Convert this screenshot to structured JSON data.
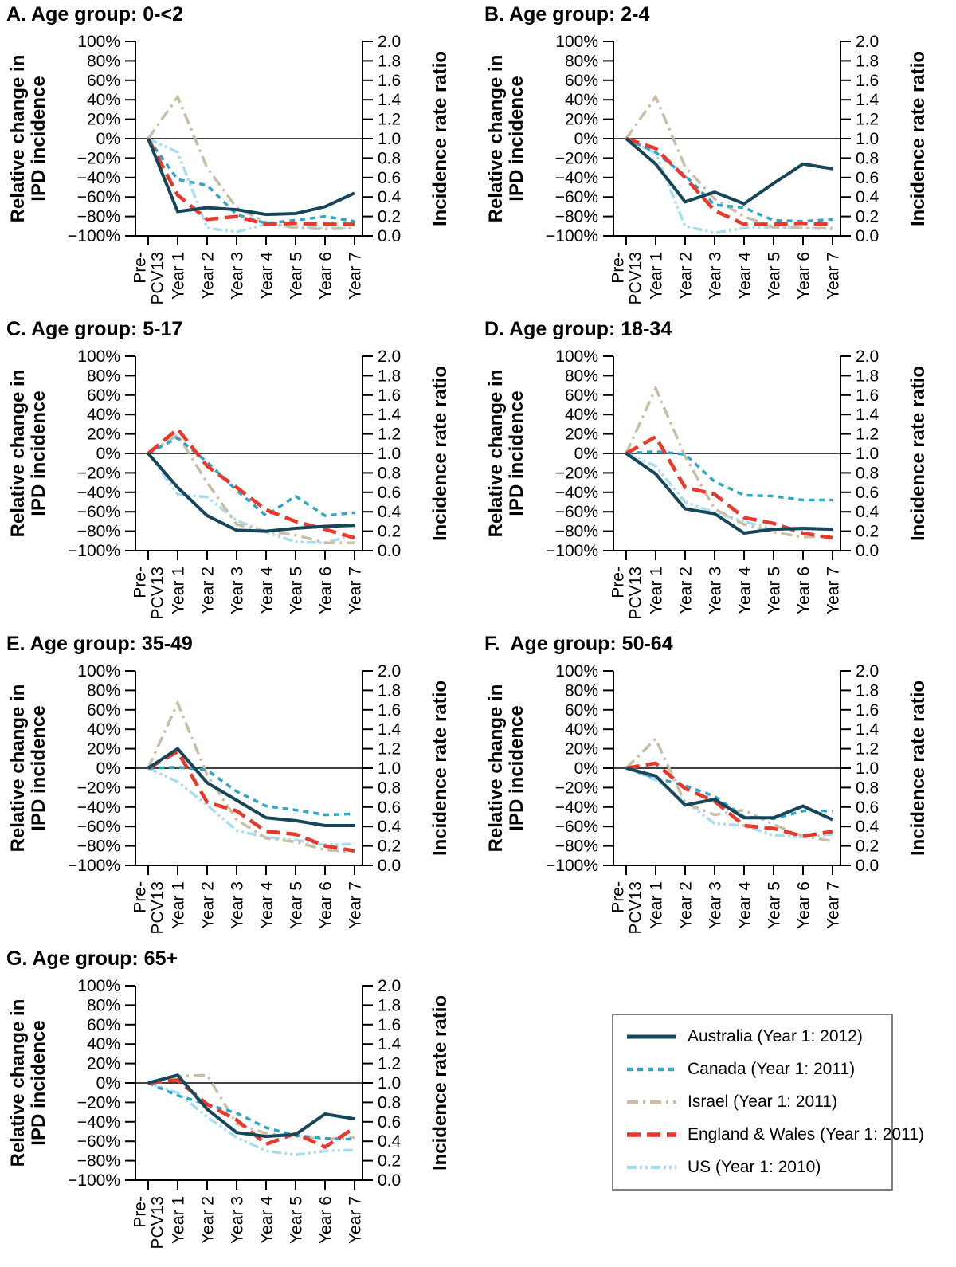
{
  "figure": {
    "background_color": "#ffffff",
    "axis": {
      "left_label_line1": "Relative change in",
      "left_label_line2": "IPD incidence",
      "right_label": "Incidence rate ratio",
      "left_tick_labels": [
        "100%",
        "80%",
        "60%",
        "40%",
        "20%",
        "0%",
        "−20%",
        "−40%",
        "−60%",
        "−80%",
        "−100%"
      ],
      "right_tick_labels": [
        "2.0",
        "1.8",
        "1.6",
        "1.4",
        "1.2",
        "1.0",
        "0.8",
        "0.6",
        "0.4",
        "0.2",
        "0.0"
      ]
    }
  },
  "series_meta": [
    {
      "id": "australia",
      "label": "Australia (Year 1: 2012)",
      "color": "#15465a",
      "dash": "none",
      "width": 4
    },
    {
      "id": "canada",
      "label": "Canada (Year 1: 2011)",
      "color": "#2fa6c5",
      "dash": "7 6",
      "width": 3.5
    },
    {
      "id": "israel",
      "label": "Israel (Year 1: 2011)",
      "color": "#c9bfa6",
      "dash": "14 6 3 6",
      "width": 3.5
    },
    {
      "id": "england-wales",
      "label": "England & Wales (Year 1: 2011)",
      "color": "#e9392c",
      "dash": "17 8",
      "width": 4.5
    },
    {
      "id": "us",
      "label": "US (Year 1: 2010)",
      "color": "#a9dcee",
      "dash": "12 4 3 4 3 4",
      "width": 3.5
    }
  ],
  "chart_data": {
    "type": "line",
    "categories": [
      "Pre-PCV13",
      "Year 1",
      "Year 2",
      "Year 3",
      "Year 4",
      "Year 5",
      "Year 6",
      "Year 7"
    ],
    "ylabel": "Relative change in IPD incidence",
    "y2label": "Incidence rate ratio",
    "ylim": [
      -100,
      100
    ],
    "y2lim": [
      0.0,
      2.0
    ],
    "y_unit": "%",
    "y_tick_step": 20,
    "zero_line": true,
    "grid": false,
    "legend_position": "bottom-right",
    "panels": [
      {
        "title": "A. Age group: 0-<2",
        "series": [
          {
            "name": "Australia (Year 1: 2012)",
            "values": [
              0,
              -75,
              -71,
              -73,
              -78,
              -77,
              -70,
              -56
            ]
          },
          {
            "name": "Canada (Year 1: 2011)",
            "values": [
              0,
              -42,
              -48,
              -78,
              -87,
              -84,
              -80,
              -85
            ]
          },
          {
            "name": "Israel (Year 1: 2011)",
            "values": [
              0,
              43,
              -30,
              -71,
              -86,
              -92,
              -93,
              -92
            ]
          },
          {
            "name": "England & Wales (Year 1: 2011)",
            "values": [
              0,
              -58,
              -83,
              -80,
              -88,
              -87,
              -88,
              -88
            ]
          },
          {
            "name": "US (Year 1: 2010)",
            "values": [
              0,
              -14,
              -92,
              -96,
              -88,
              -91,
              -92,
              -92
            ]
          }
        ]
      },
      {
        "title": "B. Age group: 2-4",
        "series": [
          {
            "name": "Australia (Year 1: 2012)",
            "values": [
              0,
              -26,
              -65,
              -55,
              -67,
              -46,
              -26,
              -31
            ]
          },
          {
            "name": "Canada (Year 1: 2011)",
            "values": [
              0,
              -14,
              -38,
              -68,
              -71,
              -84,
              -85,
              -83
            ]
          },
          {
            "name": "Israel (Year 1: 2011)",
            "values": [
              0,
              43,
              -29,
              -62,
              -80,
              -91,
              -92,
              -92
            ]
          },
          {
            "name": "England & Wales (Year 1: 2011)",
            "values": [
              0,
              -10,
              -40,
              -74,
              -88,
              -88,
              -87,
              -88
            ]
          },
          {
            "name": "US (Year 1: 2010)",
            "values": [
              0,
              -15,
              -90,
              -97,
              -92,
              -91,
              -92,
              -93
            ]
          }
        ]
      },
      {
        "title": "C. Age group: 5-17",
        "series": [
          {
            "name": "Australia (Year 1: 2012)",
            "values": [
              0,
              -35,
              -64,
              -79,
              -80,
              -77,
              -75,
              -74
            ]
          },
          {
            "name": "Canada (Year 1: 2011)",
            "values": [
              0,
              16,
              -9,
              -38,
              -64,
              -44,
              -64,
              -61
            ]
          },
          {
            "name": "Israel (Year 1: 2011)",
            "values": [
              0,
              19,
              -30,
              -73,
              -80,
              -84,
              -92,
              -92
            ]
          },
          {
            "name": "England & Wales (Year 1: 2011)",
            "values": [
              0,
              25,
              -13,
              -35,
              -58,
              -70,
              -78,
              -87
            ]
          },
          {
            "name": "US (Year 1: 2010)",
            "values": [
              0,
              -42,
              -45,
              -69,
              -81,
              -91,
              -92,
              -84
            ]
          }
        ]
      },
      {
        "title": "D. Age group: 18-34",
        "series": [
          {
            "name": "Australia (Year 1: 2012)",
            "values": [
              0,
              -21,
              -57,
              -62,
              -82,
              -78,
              -77,
              -78
            ]
          },
          {
            "name": "Canada (Year 1: 2011)",
            "values": [
              0,
              2,
              -1,
              -29,
              -43,
              -44,
              -48,
              -48
            ]
          },
          {
            "name": "Israel (Year 1: 2011)",
            "values": [
              0,
              67,
              -3,
              -57,
              -73,
              -81,
              -86,
              -85
            ]
          },
          {
            "name": "England & Wales (Year 1: 2011)",
            "values": [
              0,
              17,
              -35,
              -42,
              -66,
              -72,
              -82,
              -87
            ]
          },
          {
            "name": "US (Year 1: 2010)",
            "values": [
              0,
              -13,
              -50,
              -61,
              -70,
              -78,
              -78,
              -78
            ]
          }
        ]
      },
      {
        "title": "E. Age group: 35-49",
        "series": [
          {
            "name": "Australia (Year 1: 2012)",
            "values": [
              0,
              20,
              -15,
              -33,
              -51,
              -54,
              -59,
              -59
            ]
          },
          {
            "name": "Canada (Year 1: 2011)",
            "values": [
              0,
              1,
              -2,
              -24,
              -39,
              -43,
              -48,
              -47
            ]
          },
          {
            "name": "Israel (Year 1: 2011)",
            "values": [
              0,
              67,
              -7,
              -53,
              -72,
              -76,
              -84,
              -86
            ]
          },
          {
            "name": "England & Wales (Year 1: 2011)",
            "values": [
              0,
              17,
              -35,
              -44,
              -65,
              -68,
              -80,
              -85
            ]
          },
          {
            "name": "US (Year 1: 2010)",
            "values": [
              0,
              -14,
              -38,
              -64,
              -71,
              -74,
              -79,
              -78
            ]
          }
        ]
      },
      {
        "title": "F.  Age group: 50-64",
        "series": [
          {
            "name": "Australia (Year 1: 2012)",
            "values": [
              0,
              -8,
              -38,
              -32,
              -51,
              -51,
              -39,
              -53
            ]
          },
          {
            "name": "Canada (Year 1: 2011)",
            "values": [
              0,
              -10,
              -18,
              -29,
              -50,
              -52,
              -44,
              -44
            ]
          },
          {
            "name": "Israel (Year 1: 2011)",
            "values": [
              0,
              30,
              -36,
              -48,
              -43,
              -58,
              -70,
              -75
            ]
          },
          {
            "name": "England & Wales (Year 1: 2011)",
            "values": [
              0,
              5,
              -21,
              -34,
              -59,
              -62,
              -70,
              -65
            ]
          },
          {
            "name": "US (Year 1: 2010)",
            "values": [
              0,
              -12,
              -34,
              -57,
              -59,
              -69,
              -71,
              -68
            ]
          }
        ]
      },
      {
        "title": "G. Age group: 65+",
        "series": [
          {
            "name": "Australia (Year 1: 2012)",
            "values": [
              0,
              8,
              -27,
              -51,
              -55,
              -53,
              -32,
              -37
            ]
          },
          {
            "name": "Canada (Year 1: 2011)",
            "values": [
              0,
              -13,
              -22,
              -31,
              -46,
              -54,
              -57,
              -58
            ]
          },
          {
            "name": "Israel (Year 1: 2011)",
            "values": [
              0,
              7,
              8,
              -42,
              -52,
              -55,
              -58,
              -56
            ]
          },
          {
            "name": "England & Wales (Year 1: 2011)",
            "values": [
              0,
              3,
              -22,
              -38,
              -63,
              -52,
              -66,
              -46
            ]
          },
          {
            "name": "US (Year 1: 2010)",
            "values": [
              0,
              -10,
              -35,
              -56,
              -70,
              -74,
              -70,
              -69
            ]
          }
        ]
      }
    ]
  }
}
